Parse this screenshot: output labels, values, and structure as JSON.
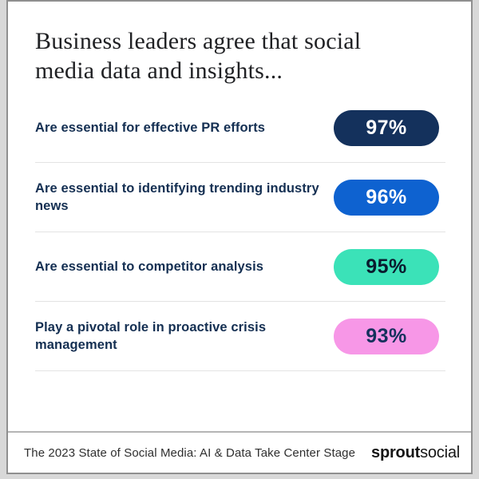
{
  "title": "Business leaders agree that social media data and insights...",
  "rows": [
    {
      "label": "Are essential for effective PR efforts",
      "value": "97%",
      "pill_color": "#14315C",
      "value_color": "#FFFFFF"
    },
    {
      "label": "Are essential to identifying trending industry news",
      "value": "96%",
      "pill_color": "#0E62D0",
      "value_color": "#FFFFFF"
    },
    {
      "label": "Are essential to competitor analysis",
      "value": "95%",
      "pill_color": "#3BE2B8",
      "value_color": "#0A1B2E"
    },
    {
      "label": "Play a pivotal role in proactive crisis management",
      "value": "93%",
      "pill_color": "#F797E7",
      "value_color": "#14315C"
    }
  ],
  "footer": {
    "source": "The 2023 State of Social Media: AI & Data Take Center Stage",
    "logo_bold": "sprout",
    "logo_regular": "social"
  },
  "chart_data": {
    "type": "bar",
    "title": "Business leaders agree that social media data and insights...",
    "categories": [
      "Are essential for effective PR efforts",
      "Are essential to identifying trending industry news",
      "Are essential to competitor analysis",
      "Play a pivotal role in proactive crisis management"
    ],
    "values": [
      97,
      96,
      95,
      93
    ],
    "unit": "%",
    "value_labels": [
      "97%",
      "96%",
      "95%",
      "93%"
    ],
    "bar_colors": [
      "#14315C",
      "#0E62D0",
      "#3BE2B8",
      "#F797E7"
    ],
    "value_text_colors": [
      "#FFFFFF",
      "#FFFFFF",
      "#0A1B2E",
      "#14315C"
    ],
    "xlabel": "",
    "ylabel": "",
    "legend": "none",
    "grid": "off",
    "source": "The 2023 State of Social Media: AI & Data Take Center Stage",
    "brand": "sproutsocial"
  }
}
